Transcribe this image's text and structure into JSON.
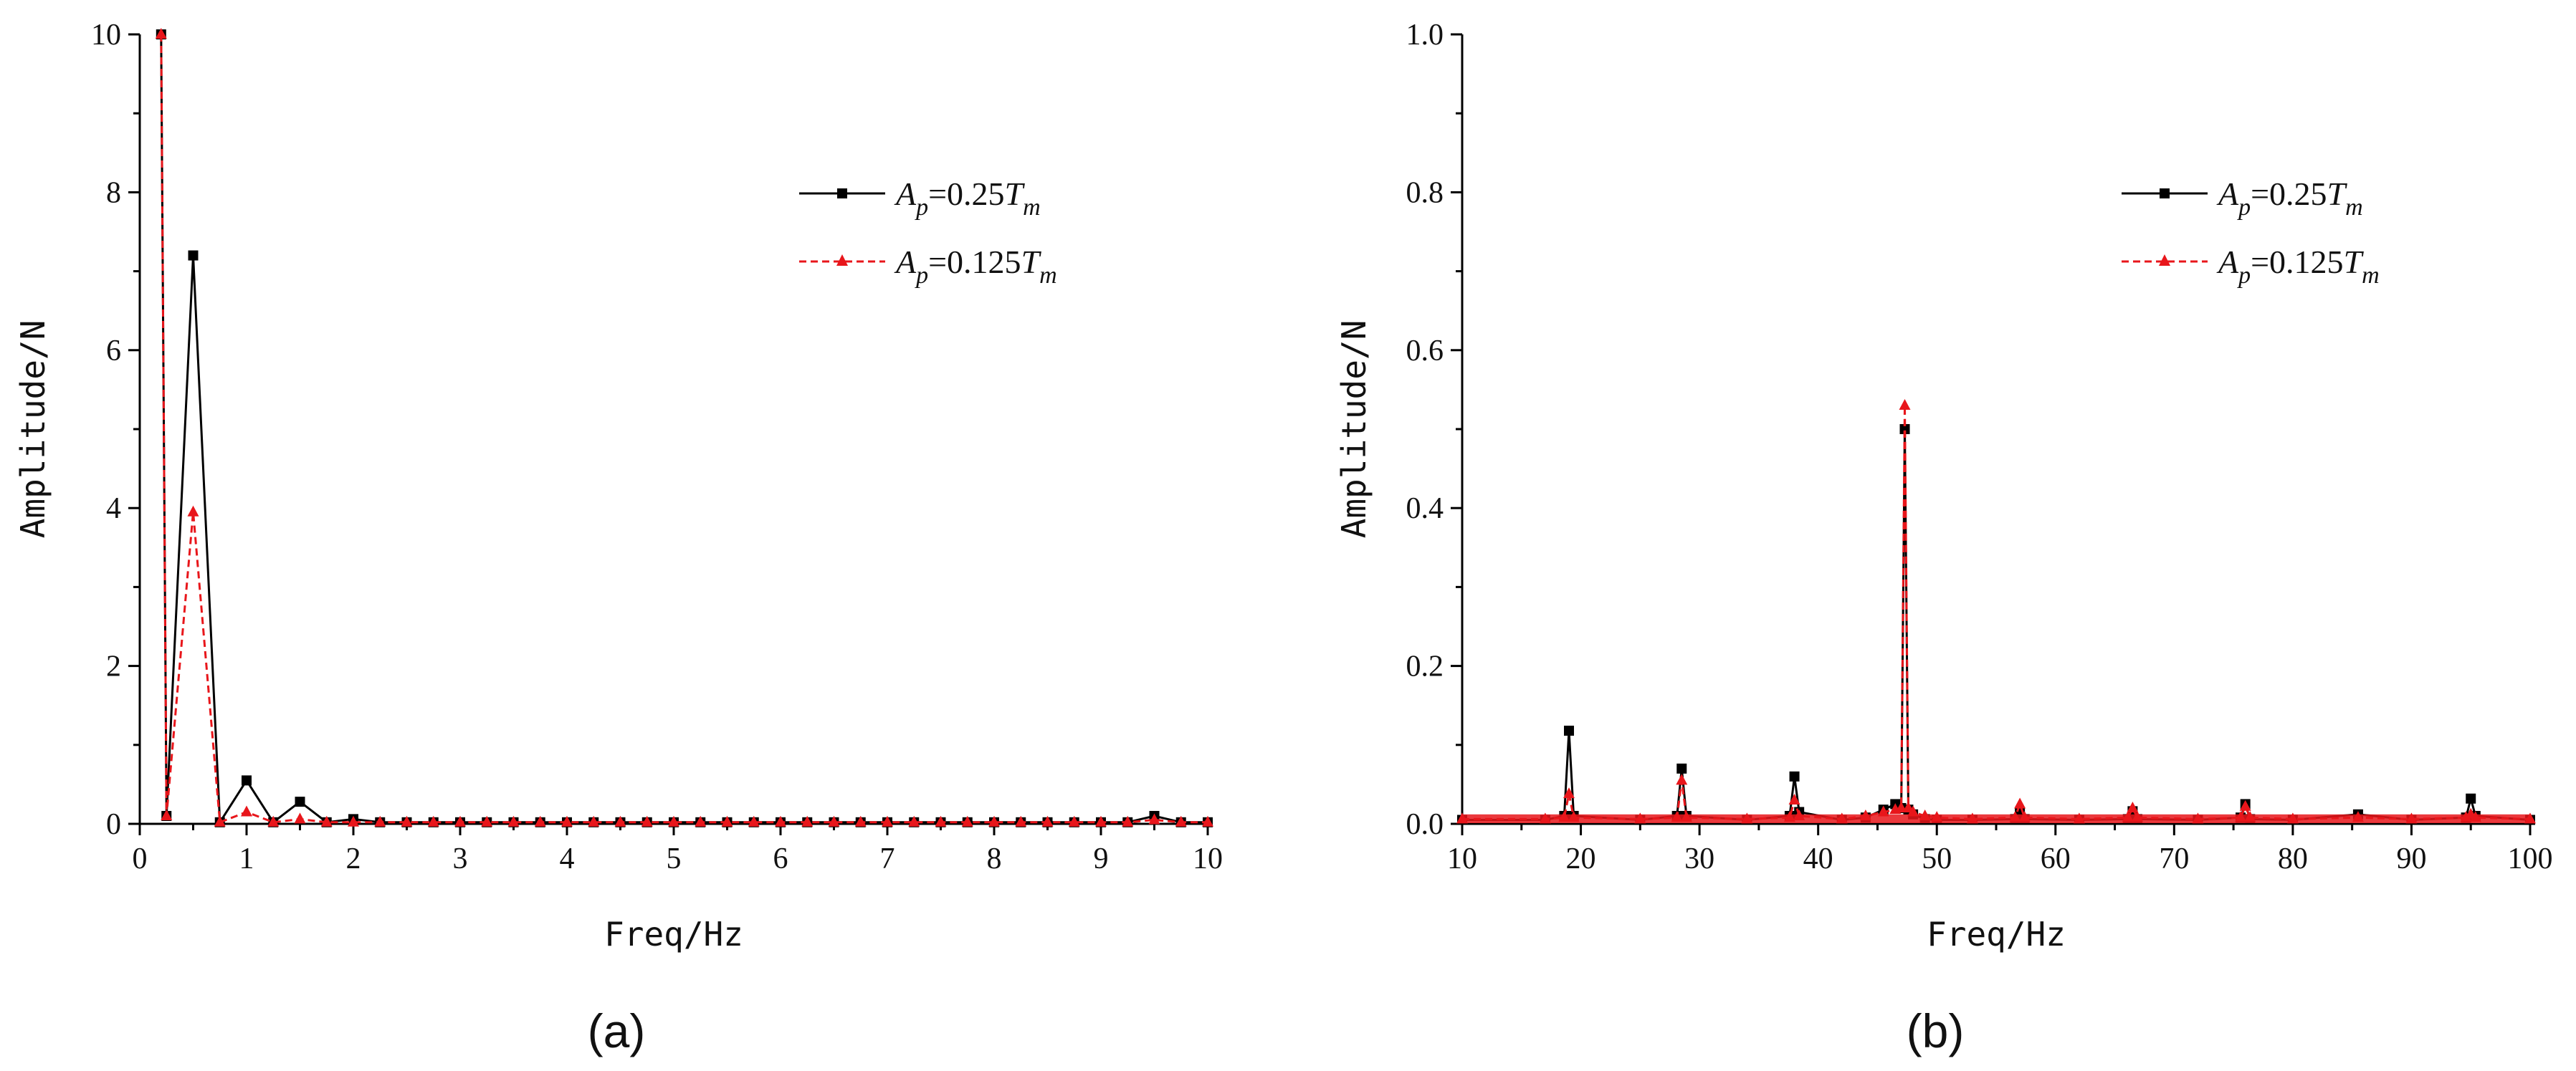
{
  "chart_data": [
    {
      "type": "line",
      "panel_label": "(a)",
      "xlabel": "Freq/Hz",
      "ylabel": "Amplitude/N",
      "xlim": [
        0,
        10
      ],
      "ylim": [
        0,
        10
      ],
      "x_ticks": [
        "0",
        "1",
        "2",
        "3",
        "4",
        "5",
        "6",
        "7",
        "8",
        "9",
        "10"
      ],
      "y_ticks": [
        "0",
        "2",
        "4",
        "6",
        "8",
        "10"
      ],
      "legend_position": "top-right",
      "grid": false,
      "x": [
        0.2,
        0.25,
        0.5,
        0.75,
        1.0,
        1.25,
        1.5,
        1.75,
        2.0,
        2.25,
        2.5,
        2.75,
        3.0,
        3.25,
        3.5,
        3.75,
        4.0,
        4.25,
        4.5,
        4.75,
        5.0,
        5.25,
        5.5,
        5.75,
        6.0,
        6.25,
        6.5,
        6.75,
        7.0,
        7.25,
        7.5,
        7.75,
        8.0,
        8.25,
        8.5,
        8.75,
        9.0,
        9.25,
        9.5,
        9.75,
        10.0
      ],
      "series": [
        {
          "name_prefix": "A",
          "name_sub": "p",
          "name_mid": "=0.25",
          "name_var": "T",
          "name_var_sub": "m",
          "color": "#000000",
          "line": "solid",
          "marker": "square",
          "values": [
            10.0,
            0.1,
            7.2,
            0.02,
            0.55,
            0.02,
            0.28,
            0.02,
            0.06,
            0.02,
            0.02,
            0.02,
            0.02,
            0.02,
            0.02,
            0.02,
            0.02,
            0.02,
            0.02,
            0.02,
            0.02,
            0.02,
            0.02,
            0.02,
            0.02,
            0.02,
            0.02,
            0.02,
            0.02,
            0.02,
            0.02,
            0.02,
            0.02,
            0.02,
            0.02,
            0.02,
            0.02,
            0.02,
            0.1,
            0.02,
            0.02
          ]
        },
        {
          "name_prefix": "A",
          "name_sub": "p",
          "name_mid": "=0.125",
          "name_var": "T",
          "name_var_sub": "m",
          "color": "#e8161b",
          "line": "dashed",
          "marker": "triangle",
          "values": [
            10.0,
            0.1,
            3.95,
            0.02,
            0.15,
            0.02,
            0.06,
            0.02,
            0.02,
            0.02,
            0.02,
            0.02,
            0.02,
            0.02,
            0.02,
            0.02,
            0.02,
            0.02,
            0.02,
            0.02,
            0.02,
            0.02,
            0.02,
            0.02,
            0.02,
            0.02,
            0.02,
            0.02,
            0.02,
            0.02,
            0.02,
            0.02,
            0.02,
            0.02,
            0.02,
            0.02,
            0.02,
            0.02,
            0.05,
            0.02,
            0.02
          ]
        }
      ]
    },
    {
      "type": "line",
      "panel_label": "(b)",
      "xlabel": "Freq/Hz",
      "ylabel": "Amplitude/N",
      "xlim": [
        10,
        100
      ],
      "ylim": [
        0,
        1.0
      ],
      "x_ticks": [
        "10",
        "20",
        "30",
        "40",
        "50",
        "60",
        "70",
        "80",
        "90",
        "100"
      ],
      "y_ticks": [
        "0.0",
        "0.2",
        "0.4",
        "0.6",
        "0.8",
        "1.0"
      ],
      "legend_position": "top-right",
      "grid": false,
      "x": [
        10,
        17,
        18.6,
        19.0,
        19.4,
        25,
        28.1,
        28.5,
        28.9,
        34,
        37.6,
        38.0,
        38.4,
        42,
        44,
        45.5,
        46.5,
        47.0,
        47.3,
        47.6,
        48,
        49,
        50,
        53,
        56.6,
        57.0,
        57.4,
        62,
        66.1,
        66.5,
        66.9,
        72,
        75.6,
        76.0,
        76.4,
        80,
        85.5,
        90,
        94.6,
        95.0,
        95.4,
        100
      ],
      "series": [
        {
          "name_prefix": "A",
          "name_sub": "p",
          "name_mid": "=0.25",
          "name_var": "T",
          "name_var_sub": "m",
          "color": "#000000",
          "line": "solid",
          "marker": "square",
          "values": [
            0.005,
            0.005,
            0.01,
            0.118,
            0.01,
            0.005,
            0.01,
            0.07,
            0.01,
            0.005,
            0.01,
            0.06,
            0.015,
            0.005,
            0.008,
            0.018,
            0.025,
            0.02,
            0.5,
            0.018,
            0.012,
            0.006,
            0.005,
            0.005,
            0.006,
            0.015,
            0.006,
            0.005,
            0.006,
            0.016,
            0.006,
            0.005,
            0.008,
            0.025,
            0.006,
            0.005,
            0.012,
            0.005,
            0.008,
            0.032,
            0.01,
            0.005
          ]
        },
        {
          "name_prefix": "A",
          "name_sub": "p",
          "name_mid": "=0.125",
          "name_var": "T",
          "name_var_sub": "m",
          "color": "#e8161b",
          "line": "dashed",
          "marker": "triangle",
          "values": [
            0.006,
            0.006,
            0.008,
            0.038,
            0.008,
            0.006,
            0.008,
            0.055,
            0.008,
            0.006,
            0.008,
            0.03,
            0.01,
            0.006,
            0.01,
            0.015,
            0.018,
            0.02,
            0.53,
            0.02,
            0.015,
            0.01,
            0.008,
            0.006,
            0.008,
            0.025,
            0.008,
            0.006,
            0.008,
            0.02,
            0.008,
            0.006,
            0.008,
            0.022,
            0.008,
            0.006,
            0.008,
            0.006,
            0.008,
            0.012,
            0.008,
            0.006
          ]
        }
      ]
    }
  ]
}
